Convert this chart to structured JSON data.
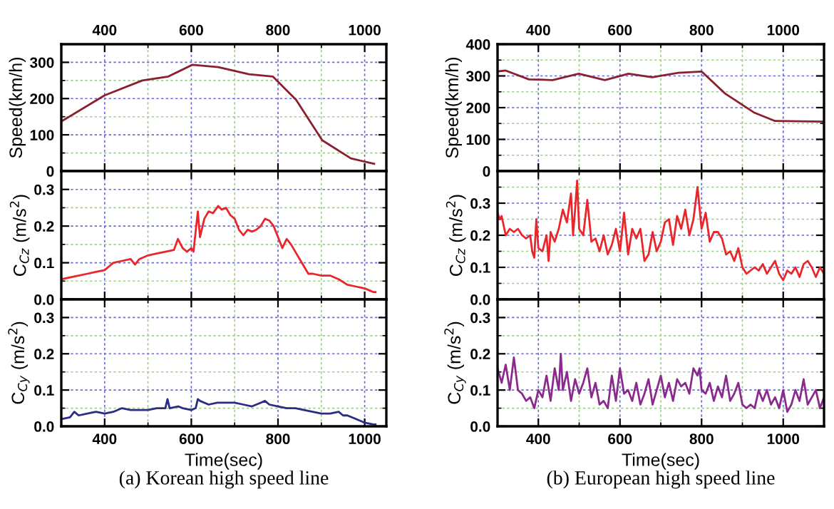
{
  "chart_data": [
    {
      "type": "line",
      "ylabel": "Speed(km/h)",
      "xlim": [
        300,
        1050
      ],
      "xticks": [
        400,
        {
          "value": 500,
          "label": null
        },
        600,
        {
          "value": 700,
          "label": null
        },
        800,
        {
          "value": 900,
          "label": null
        },
        1000
      ],
      "x2lim": [
        300,
        1050
      ],
      "x2ticks": [
        400,
        {
          "value": 500,
          "label": null
        },
        600,
        {
          "value": 700,
          "label": null
        },
        800,
        {
          "value": 900,
          "label": null
        },
        1000
      ],
      "ylim": [
        0,
        350
      ],
      "yticks": [
        0,
        {
          "value": 50,
          "label": null
        },
        100,
        {
          "value": 150,
          "label": null
        },
        200,
        {
          "value": 250,
          "label": null
        },
        300
      ],
      "grid": true,
      "tick_labels": "y",
      "series": [
        {
          "color": "#8b1f2e",
          "x": [
            300,
            400,
            487,
            547,
            602,
            662,
            733,
            788,
            842,
            902,
            968,
            1022
          ],
          "values": [
            137,
            209,
            250,
            261,
            293,
            287,
            267,
            261,
            196,
            85,
            35,
            20
          ]
        }
      ]
    },
    {
      "type": "line",
      "ylabel": "C$_{Cz}$ (m/s$^{2}$)",
      "xlim": [
        300,
        1050
      ],
      "xticks": [
        400,
        {
          "value": 500,
          "label": null
        },
        600,
        {
          "value": 700,
          "label": null
        },
        800,
        {
          "value": 900,
          "label": null
        },
        1000
      ],
      "ylim": [
        0,
        0.35
      ],
      "yticks": [
        {
          "value": 0,
          "label": "0.0"
        },
        {
          "value": 0.05,
          "label": null
        },
        0.1,
        {
          "value": 0.15,
          "label": null
        },
        0.2,
        {
          "value": 0.25,
          "label": null
        },
        0.3
      ],
      "grid": true,
      "tick_labels": "y",
      "series": [
        {
          "color": "#e8262b",
          "x": [
            300,
            320,
            340,
            360,
            380,
            400,
            410,
            420,
            440,
            460,
            470,
            480,
            500,
            520,
            540,
            560,
            569,
            580,
            590,
            600,
            605,
            615,
            620,
            630,
            640,
            650,
            662,
            670,
            680,
            690,
            700,
            710,
            720,
            730,
            740,
            750,
            760,
            770,
            780,
            790,
            800,
            810,
            820,
            830,
            840,
            850,
            860,
            870,
            880,
            900,
            920,
            940,
            960,
            980,
            1000,
            1010,
            1020,
            1025
          ],
          "values": [
            0.055,
            0.06,
            0.065,
            0.07,
            0.075,
            0.08,
            0.09,
            0.1,
            0.105,
            0.11,
            0.095,
            0.11,
            0.12,
            0.125,
            0.13,
            0.135,
            0.165,
            0.14,
            0.13,
            0.14,
            0.13,
            0.24,
            0.17,
            0.22,
            0.24,
            0.235,
            0.255,
            0.245,
            0.25,
            0.23,
            0.22,
            0.19,
            0.175,
            0.19,
            0.185,
            0.19,
            0.2,
            0.22,
            0.215,
            0.2,
            0.17,
            0.14,
            0.165,
            0.15,
            0.13,
            0.11,
            0.09,
            0.07,
            0.07,
            0.065,
            0.065,
            0.055,
            0.04,
            0.035,
            0.03,
            0.025,
            0.02,
            0.02
          ]
        }
      ]
    },
    {
      "type": "line",
      "ylabel": "C$_{Cy}$ (m/s$^{2}$)",
      "xlabel": "Time(sec)",
      "annotations": [
        "(a) Korean high speed line"
      ],
      "xlim": [
        300,
        1050
      ],
      "xticks": [
        400,
        {
          "value": 500,
          "label": null
        },
        600,
        {
          "value": 700,
          "label": null
        },
        800,
        {
          "value": 900,
          "label": null
        },
        1000
      ],
      "ylim": [
        0,
        0.35
      ],
      "yticks": [
        {
          "value": 0,
          "label": "0.0"
        },
        {
          "value": 0.05,
          "label": null
        },
        0.1,
        {
          "value": 0.15,
          "label": null
        },
        0.2,
        {
          "value": 0.25,
          "label": null
        },
        0.3
      ],
      "grid": true,
      "series": [
        {
          "color": "#2b2d85",
          "x": [
            300,
            320,
            330,
            340,
            360,
            380,
            400,
            420,
            440,
            460,
            480,
            500,
            520,
            540,
            545,
            550,
            570,
            580,
            600,
            610,
            615,
            620,
            640,
            660,
            680,
            700,
            720,
            740,
            760,
            770,
            780,
            800,
            820,
            840,
            860,
            880,
            900,
            920,
            940,
            950,
            960,
            980,
            1000,
            1020,
            1025
          ],
          "values": [
            0.02,
            0.025,
            0.04,
            0.03,
            0.035,
            0.04,
            0.035,
            0.04,
            0.05,
            0.045,
            0.045,
            0.045,
            0.05,
            0.05,
            0.075,
            0.05,
            0.055,
            0.05,
            0.045,
            0.05,
            0.075,
            0.07,
            0.06,
            0.065,
            0.065,
            0.065,
            0.06,
            0.055,
            0.065,
            0.07,
            0.06,
            0.055,
            0.05,
            0.05,
            0.045,
            0.04,
            0.035,
            0.035,
            0.04,
            0.03,
            0.03,
            0.02,
            0.01,
            0.005,
            0.005
          ]
        }
      ]
    },
    {
      "type": "line",
      "ylabel": "Speed(km/h)",
      "xlim": [
        300,
        1100
      ],
      "xticks": [
        400,
        {
          "value": 500,
          "label": null
        },
        600,
        {
          "value": 700,
          "label": null
        },
        800,
        {
          "value": 900,
          "label": null
        },
        1000
      ],
      "x2lim": [
        300,
        1100
      ],
      "x2ticks": [
        400,
        {
          "value": 500,
          "label": null
        },
        600,
        {
          "value": 700,
          "label": null
        },
        800,
        {
          "value": 900,
          "label": null
        },
        1000
      ],
      "ylim": [
        0,
        400
      ],
      "yticks": [
        0,
        {
          "value": 50,
          "label": null
        },
        100,
        {
          "value": 150,
          "label": null
        },
        200,
        {
          "value": 250,
          "label": null
        },
        300,
        {
          "value": 350,
          "label": null
        },
        400
      ],
      "grid": true,
      "tick_labels": "y",
      "series": [
        {
          "color": "#8b1f2e",
          "x": [
            300,
            320,
            377,
            435,
            499,
            563,
            621,
            679,
            743,
            800,
            858,
            928,
            980,
            1100
          ],
          "values": [
            314,
            317,
            289,
            287,
            307,
            287,
            307,
            296,
            310,
            314,
            244,
            185,
            158,
            156
          ]
        }
      ]
    },
    {
      "type": "line",
      "ylabel": "C$_{Cz}$ (m/s$^{2}$)",
      "xlim": [
        300,
        1100
      ],
      "xticks": [
        400,
        {
          "value": 500,
          "label": null
        },
        600,
        {
          "value": 700,
          "label": null
        },
        800,
        {
          "value": 900,
          "label": null
        },
        1000
      ],
      "ylim": [
        0,
        0.4
      ],
      "yticks": [
        {
          "value": 0,
          "label": "0.0"
        },
        {
          "value": 0.05,
          "label": null
        },
        0.1,
        {
          "value": 0.15,
          "label": null
        },
        0.2,
        {
          "value": 0.25,
          "label": null
        },
        0.3,
        {
          "value": 0.35,
          "label": null
        }
      ],
      "grid": true,
      "tick_labels": "y",
      "series": [
        {
          "color": "#e8262b",
          "x": [
            300,
            305,
            310,
            320,
            330,
            340,
            350,
            360,
            370,
            380,
            385,
            390,
            395,
            400,
            410,
            420,
            425,
            430,
            440,
            450,
            460,
            470,
            480,
            485,
            490,
            495,
            500,
            510,
            520,
            530,
            540,
            550,
            560,
            570,
            580,
            590,
            600,
            610,
            620,
            630,
            640,
            650,
            660,
            670,
            680,
            690,
            700,
            710,
            720,
            730,
            740,
            750,
            760,
            770,
            780,
            790,
            800,
            810,
            820,
            830,
            840,
            850,
            860,
            870,
            880,
            890,
            900,
            910,
            920,
            930,
            940,
            950,
            960,
            970,
            980,
            990,
            1000,
            1010,
            1020,
            1030,
            1040,
            1050,
            1060,
            1070,
            1080,
            1090,
            1100
          ],
          "values": [
            0.27,
            0.25,
            0.26,
            0.2,
            0.22,
            0.21,
            0.22,
            0.2,
            0.19,
            0.2,
            0.15,
            0.13,
            0.25,
            0.16,
            0.15,
            0.2,
            0.12,
            0.21,
            0.18,
            0.22,
            0.28,
            0.24,
            0.33,
            0.2,
            0.28,
            0.37,
            0.22,
            0.2,
            0.31,
            0.18,
            0.19,
            0.15,
            0.2,
            0.14,
            0.17,
            0.22,
            0.15,
            0.27,
            0.14,
            0.22,
            0.19,
            0.22,
            0.12,
            0.14,
            0.21,
            0.15,
            0.18,
            0.24,
            0.25,
            0.17,
            0.26,
            0.22,
            0.28,
            0.2,
            0.25,
            0.35,
            0.22,
            0.27,
            0.18,
            0.21,
            0.21,
            0.19,
            0.14,
            0.15,
            0.12,
            0.16,
            0.1,
            0.08,
            0.09,
            0.1,
            0.09,
            0.11,
            0.08,
            0.1,
            0.12,
            0.08,
            0.06,
            0.09,
            0.08,
            0.1,
            0.07,
            0.11,
            0.12,
            0.1,
            0.07,
            0.1,
            0.08
          ]
        }
      ]
    },
    {
      "type": "line",
      "ylabel": "C$_{Cy}$ (m/s$^{2}$)",
      "xlabel": "Time(sec)",
      "annotations": [
        "(b) European high speed line"
      ],
      "xlim": [
        300,
        1100
      ],
      "xticks": [
        400,
        {
          "value": 500,
          "label": null
        },
        600,
        {
          "value": 700,
          "label": null
        },
        800,
        {
          "value": 900,
          "label": null
        },
        1000
      ],
      "ylim": [
        0,
        0.35
      ],
      "yticks": [
        {
          "value": 0,
          "label": "0.0"
        },
        {
          "value": 0.05,
          "label": null
        },
        0.1,
        {
          "value": 0.15,
          "label": null
        },
        0.2,
        {
          "value": 0.25,
          "label": null
        },
        0.3
      ],
      "grid": true,
      "series": [
        {
          "color": "#8a2a8e",
          "x": [
            300,
            310,
            320,
            330,
            340,
            350,
            360,
            370,
            380,
            390,
            400,
            410,
            420,
            430,
            440,
            450,
            455,
            460,
            470,
            480,
            490,
            500,
            510,
            520,
            530,
            540,
            550,
            560,
            570,
            580,
            590,
            600,
            610,
            620,
            630,
            640,
            650,
            660,
            670,
            680,
            690,
            700,
            710,
            720,
            730,
            740,
            750,
            760,
            770,
            780,
            790,
            795,
            800,
            810,
            820,
            830,
            840,
            850,
            860,
            870,
            880,
            890,
            900,
            910,
            920,
            930,
            940,
            950,
            960,
            970,
            980,
            990,
            1000,
            1010,
            1020,
            1030,
            1040,
            1050,
            1060,
            1070,
            1080,
            1090,
            1100
          ],
          "values": [
            0.16,
            0.12,
            0.17,
            0.1,
            0.19,
            0.1,
            0.09,
            0.07,
            0.08,
            0.05,
            0.1,
            0.08,
            0.14,
            0.07,
            0.16,
            0.1,
            0.2,
            0.1,
            0.15,
            0.07,
            0.13,
            0.09,
            0.12,
            0.16,
            0.08,
            0.12,
            0.06,
            0.07,
            0.05,
            0.14,
            0.07,
            0.16,
            0.09,
            0.1,
            0.07,
            0.12,
            0.06,
            0.09,
            0.13,
            0.06,
            0.1,
            0.14,
            0.08,
            0.12,
            0.07,
            0.13,
            0.11,
            0.12,
            0.09,
            0.16,
            0.14,
            0.16,
            0.1,
            0.09,
            0.12,
            0.07,
            0.11,
            0.08,
            0.14,
            0.07,
            0.09,
            0.12,
            0.06,
            0.05,
            0.06,
            0.05,
            0.1,
            0.07,
            0.1,
            0.06,
            0.08,
            0.05,
            0.1,
            0.04,
            0.06,
            0.1,
            0.07,
            0.13,
            0.06,
            0.08,
            0.1,
            0.05,
            0.08
          ]
        }
      ]
    }
  ]
}
